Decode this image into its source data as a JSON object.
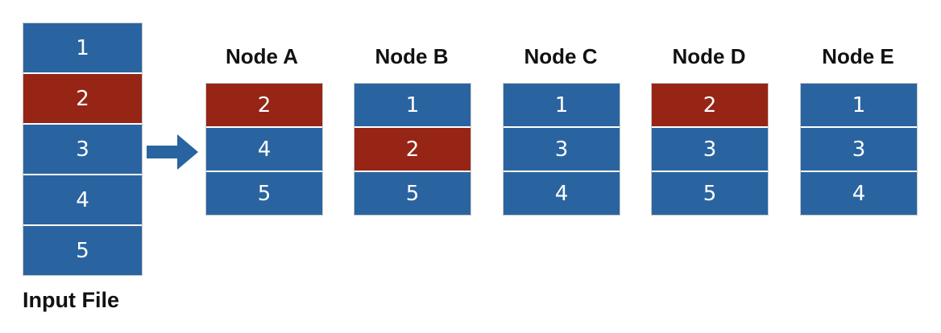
{
  "colors": {
    "blue": "#2a64a0",
    "red": "#962516",
    "arrow": "#2a64a0"
  },
  "input_file": {
    "label": "Input File",
    "blocks": [
      {
        "label": "1",
        "color": "blue"
      },
      {
        "label": "2",
        "color": "red"
      },
      {
        "label": "3",
        "color": "blue"
      },
      {
        "label": "4",
        "color": "blue"
      },
      {
        "label": "5",
        "color": "blue"
      }
    ]
  },
  "arrow_icon": "right-arrow-icon",
  "nodes": [
    {
      "title": "Node A",
      "blocks": [
        {
          "label": "2",
          "color": "red"
        },
        {
          "label": "4",
          "color": "blue"
        },
        {
          "label": "5",
          "color": "blue"
        }
      ]
    },
    {
      "title": "Node B",
      "blocks": [
        {
          "label": "1",
          "color": "blue"
        },
        {
          "label": "2",
          "color": "red"
        },
        {
          "label": "5",
          "color": "blue"
        }
      ]
    },
    {
      "title": "Node C",
      "blocks": [
        {
          "label": "1",
          "color": "blue"
        },
        {
          "label": "3",
          "color": "blue"
        },
        {
          "label": "4",
          "color": "blue"
        }
      ]
    },
    {
      "title": "Node D",
      "blocks": [
        {
          "label": "2",
          "color": "red"
        },
        {
          "label": "3",
          "color": "blue"
        },
        {
          "label": "5",
          "color": "blue"
        }
      ]
    },
    {
      "title": "Node E",
      "blocks": [
        {
          "label": "1",
          "color": "blue"
        },
        {
          "label": "3",
          "color": "blue"
        },
        {
          "label": "4",
          "color": "blue"
        }
      ]
    }
  ]
}
